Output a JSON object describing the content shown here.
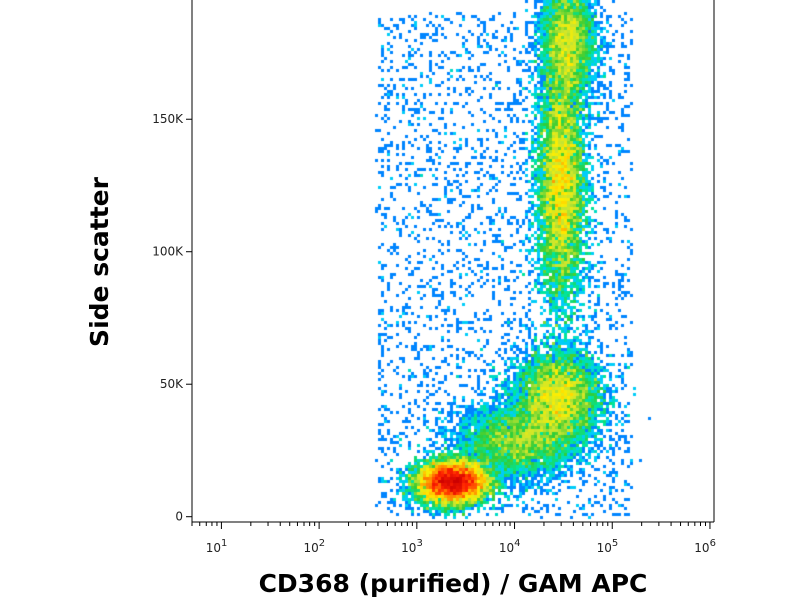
{
  "chart_data": {
    "type": "heatmap",
    "title": "",
    "xlabel": "CD368 (purified) / GAM APC",
    "ylabel": "Side scatter",
    "x_scale": "log",
    "xlim": [
      5,
      1100000
    ],
    "ylim": [
      -2000,
      195000
    ],
    "x_ticks": [
      {
        "value": 10,
        "base": "10",
        "exp": "1"
      },
      {
        "value": 100,
        "base": "10",
        "exp": "2"
      },
      {
        "value": 1000,
        "base": "10",
        "exp": "3"
      },
      {
        "value": 10000,
        "base": "10",
        "exp": "4"
      },
      {
        "value": 100000,
        "base": "10",
        "exp": "5"
      },
      {
        "value": 1000000,
        "base": "10",
        "exp": "6"
      }
    ],
    "y_ticks": [
      {
        "value": 0,
        "label": "0"
      },
      {
        "value": 50000,
        "label": "50K"
      },
      {
        "value": 100000,
        "label": "100K"
      },
      {
        "value": 150000,
        "label": "150K"
      }
    ],
    "grid": false,
    "legend": "none",
    "colormap": [
      "#0000cc",
      "#0066ff",
      "#00ccff",
      "#00e6a0",
      "#33cc33",
      "#c8e632",
      "#ffee00",
      "#ff9900",
      "#ff2200",
      "#cc0000"
    ],
    "populations": [
      {
        "x_center": 2300,
        "y_center": 13000,
        "x_spread_log": 0.18,
        "y_spread": 4000,
        "peak_density": 1.0
      },
      {
        "x_center": 30000,
        "y_center": 125000,
        "x_spread_log": 0.12,
        "y_spread": 22000,
        "peak_density": 0.8
      },
      {
        "x_center": 28000,
        "y_center": 45000,
        "x_spread_log": 0.22,
        "y_spread": 9000,
        "peak_density": 0.5
      },
      {
        "x_center": 10000,
        "y_center": 28000,
        "x_spread_log": 0.3,
        "y_spread": 7000,
        "peak_density": 0.3
      },
      {
        "x_center": 35000,
        "y_center": 180000,
        "x_spread_log": 0.14,
        "y_spread": 12000,
        "peak_density": 0.35
      }
    ]
  }
}
